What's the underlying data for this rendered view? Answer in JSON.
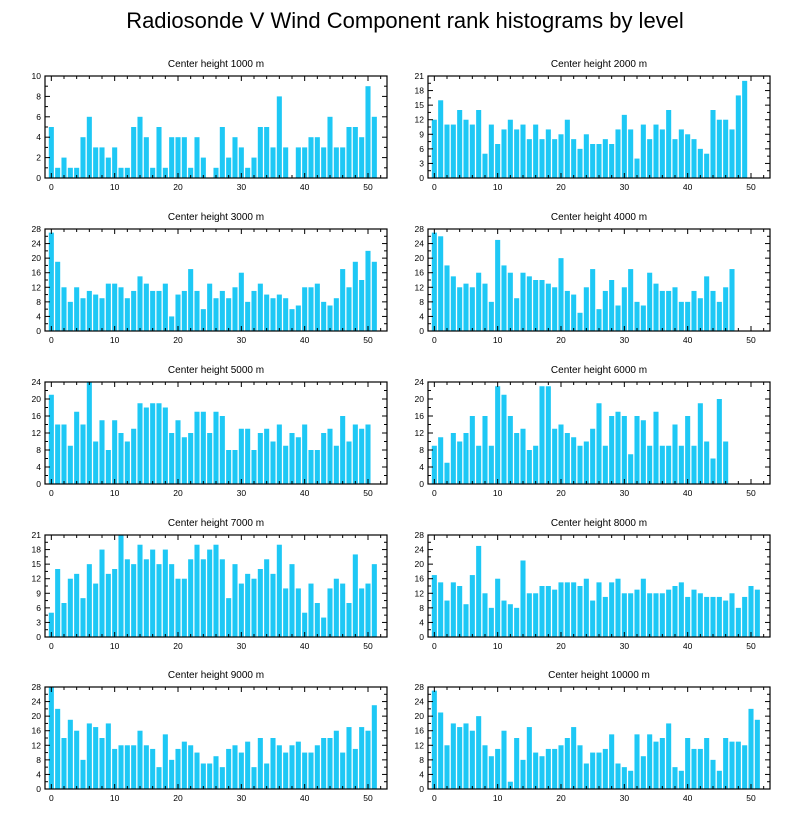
{
  "title": "Radiosonde V Wind Component rank histograms by level",
  "chart_data": [
    {
      "type": "bar",
      "title": "Center height 1000 m",
      "ylim": [
        0,
        10
      ],
      "yticks": [
        0,
        2,
        4,
        6,
        8,
        10
      ],
      "xlim": [
        -1,
        53
      ],
      "xticks": [
        0,
        10,
        20,
        30,
        40,
        50
      ],
      "values": [
        5,
        1,
        2,
        1,
        1,
        4,
        6,
        3,
        3,
        2,
        3,
        1,
        1,
        5,
        6,
        4,
        1,
        5,
        1,
        4,
        4,
        4,
        1,
        4,
        2,
        0,
        1,
        5,
        2,
        4,
        3,
        1,
        2,
        5,
        5,
        3,
        8,
        3,
        0,
        3,
        3,
        4,
        4,
        3,
        6,
        3,
        3,
        5,
        5,
        4,
        9,
        6
      ]
    },
    {
      "type": "bar",
      "title": "Center height 2000 m",
      "ylim": [
        0,
        21
      ],
      "yticks": [
        0,
        3,
        6,
        9,
        12,
        15,
        18,
        21
      ],
      "xlim": [
        -1,
        53
      ],
      "xticks": [
        0,
        10,
        20,
        30,
        40,
        50
      ],
      "values": [
        12,
        16,
        11,
        11,
        14,
        12,
        11,
        14,
        5,
        11,
        7,
        10,
        12,
        10,
        11,
        8,
        11,
        8,
        10,
        8,
        9,
        12,
        8,
        6,
        9,
        7,
        7,
        8,
        7,
        10,
        13,
        10,
        4,
        11,
        8,
        11,
        10,
        14,
        8,
        10,
        9,
        8,
        6,
        5,
        14,
        12,
        12,
        10,
        17,
        20
      ]
    },
    {
      "type": "bar",
      "title": "Center height 3000 m",
      "ylim": [
        0,
        28
      ],
      "yticks": [
        0,
        4,
        8,
        12,
        16,
        20,
        24,
        28
      ],
      "xlim": [
        -1,
        53
      ],
      "xticks": [
        0,
        10,
        20,
        30,
        40,
        50
      ],
      "values": [
        27,
        19,
        12,
        8,
        12,
        9,
        11,
        10,
        9,
        13,
        13,
        12,
        9,
        11,
        15,
        13,
        11,
        11,
        13,
        4,
        10,
        11,
        17,
        11,
        6,
        13,
        9,
        11,
        9,
        12,
        16,
        8,
        11,
        13,
        10,
        9,
        10,
        9,
        6,
        7,
        12,
        12,
        13,
        8,
        7,
        9,
        17,
        12,
        19,
        14,
        22,
        19
      ]
    },
    {
      "type": "bar",
      "title": "Center height 4000 m",
      "ylim": [
        0,
        28
      ],
      "yticks": [
        0,
        4,
        8,
        12,
        16,
        20,
        24,
        28
      ],
      "xlim": [
        -1,
        53
      ],
      "xticks": [
        0,
        10,
        20,
        30,
        40,
        50
      ],
      "values": [
        27,
        26,
        18,
        15,
        12,
        13,
        12,
        16,
        13,
        8,
        25,
        18,
        16,
        9,
        16,
        15,
        14,
        14,
        13,
        12,
        20,
        11,
        10,
        5,
        12,
        17,
        6,
        11,
        14,
        7,
        12,
        17,
        8,
        7,
        16,
        13,
        11,
        11,
        12,
        8,
        8,
        11,
        9,
        15,
        11,
        8,
        12,
        17
      ]
    },
    {
      "type": "bar",
      "title": "Center height 5000 m",
      "ylim": [
        0,
        24
      ],
      "yticks": [
        0,
        4,
        8,
        12,
        16,
        20,
        24
      ],
      "xlim": [
        -1,
        53
      ],
      "xticks": [
        0,
        10,
        20,
        30,
        40,
        50
      ],
      "values": [
        21,
        14,
        14,
        9,
        17,
        14,
        24,
        10,
        15,
        8,
        15,
        12,
        10,
        13,
        19,
        18,
        19,
        19,
        18,
        12,
        15,
        11,
        12,
        17,
        17,
        12,
        17,
        16,
        8,
        8,
        13,
        13,
        8,
        12,
        13,
        10,
        14,
        9,
        12,
        11,
        14,
        8,
        8,
        12,
        13,
        9,
        16,
        10,
        14,
        13,
        14
      ]
    },
    {
      "type": "bar",
      "title": "Center height 6000 m",
      "ylim": [
        0,
        24
      ],
      "yticks": [
        0,
        4,
        8,
        12,
        16,
        20,
        24
      ],
      "xlim": [
        -1,
        53
      ],
      "xticks": [
        0,
        10,
        20,
        30,
        40,
        50
      ],
      "values": [
        9,
        11,
        5,
        12,
        10,
        12,
        16,
        9,
        16,
        9,
        23,
        21,
        16,
        12,
        13,
        8,
        9,
        23,
        23,
        13,
        14,
        12,
        11,
        9,
        10,
        13,
        19,
        9,
        16,
        17,
        16,
        7,
        16,
        15,
        9,
        17,
        9,
        9,
        14,
        9,
        16,
        9,
        19,
        10,
        6,
        20,
        10
      ]
    },
    {
      "type": "bar",
      "title": "Center height 7000 m",
      "ylim": [
        0,
        21
      ],
      "yticks": [
        0,
        3,
        6,
        9,
        12,
        15,
        18,
        21
      ],
      "xlim": [
        -1,
        53
      ],
      "xticks": [
        0,
        10,
        20,
        30,
        40,
        50
      ],
      "values": [
        5,
        14,
        7,
        12,
        13,
        8,
        15,
        11,
        18,
        13,
        14,
        21,
        16,
        15,
        19,
        16,
        18,
        15,
        18,
        15,
        12,
        12,
        16,
        19,
        16,
        18,
        19,
        16,
        8,
        15,
        11,
        13,
        12,
        14,
        16,
        13,
        19,
        10,
        15,
        10,
        5,
        11,
        7,
        4,
        10,
        12,
        11,
        7,
        17,
        10,
        11,
        15
      ]
    },
    {
      "type": "bar",
      "title": "Center height 8000 m",
      "ylim": [
        0,
        28
      ],
      "yticks": [
        0,
        4,
        8,
        12,
        16,
        20,
        24,
        28
      ],
      "xlim": [
        -1,
        53
      ],
      "xticks": [
        0,
        10,
        20,
        30,
        40,
        50
      ],
      "values": [
        17,
        15,
        10,
        15,
        14,
        9,
        17,
        25,
        12,
        8,
        16,
        10,
        9,
        8,
        21,
        12,
        12,
        14,
        14,
        13,
        15,
        15,
        15,
        14,
        16,
        10,
        15,
        11,
        15,
        16,
        12,
        12,
        13,
        16,
        12,
        12,
        12,
        13,
        14,
        15,
        11,
        13,
        12,
        11,
        11,
        11,
        10,
        12,
        8,
        11,
        14,
        13
      ]
    },
    {
      "type": "bar",
      "title": "Center height 9000 m",
      "ylim": [
        0,
        28
      ],
      "yticks": [
        0,
        4,
        8,
        12,
        16,
        20,
        24,
        28
      ],
      "xlim": [
        -1,
        53
      ],
      "xticks": [
        0,
        10,
        20,
        30,
        40,
        50
      ],
      "values": [
        28,
        22,
        14,
        19,
        16,
        8,
        18,
        17,
        14,
        18,
        11,
        12,
        12,
        12,
        16,
        12,
        11,
        6,
        15,
        8,
        11,
        13,
        12,
        10,
        7,
        7,
        9,
        6,
        11,
        12,
        10,
        13,
        6,
        14,
        7,
        14,
        12,
        10,
        12,
        13,
        10,
        10,
        12,
        14,
        14,
        16,
        10,
        17,
        11,
        17,
        16,
        23
      ]
    },
    {
      "type": "bar",
      "title": "Center height 10000 m",
      "ylim": [
        0,
        28
      ],
      "yticks": [
        0,
        4,
        8,
        12,
        16,
        20,
        24,
        28
      ],
      "xlim": [
        -1,
        53
      ],
      "xticks": [
        0,
        10,
        20,
        30,
        40,
        50
      ],
      "values": [
        27,
        21,
        12,
        18,
        17,
        18,
        16,
        20,
        12,
        9,
        11,
        16,
        2,
        14,
        8,
        17,
        10,
        9,
        11,
        11,
        12,
        14,
        17,
        12,
        7,
        10,
        10,
        11,
        15,
        7,
        6,
        5,
        15,
        9,
        15,
        13,
        14,
        18,
        6,
        5,
        14,
        11,
        11,
        14,
        8,
        5,
        14,
        13,
        13,
        12,
        22,
        19
      ]
    }
  ]
}
